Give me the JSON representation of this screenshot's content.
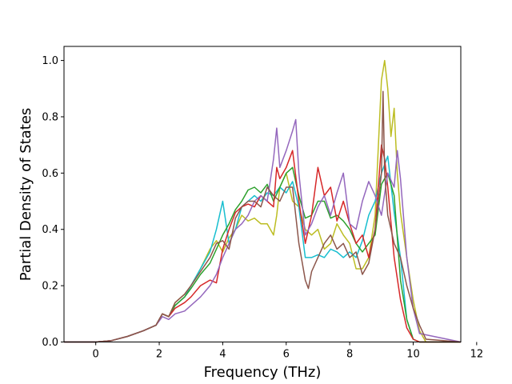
{
  "chart_data": {
    "type": "line",
    "title": "",
    "xlabel": "Frequency (THz)",
    "ylabel": "Partial Density of States",
    "xlim": [
      -1.0,
      11.5
    ],
    "ylim": [
      0.0,
      1.05
    ],
    "xticks": [
      0,
      2,
      4,
      6,
      8,
      10,
      12
    ],
    "yticks": [
      0.0,
      0.2,
      0.4,
      0.6,
      0.8,
      1.0
    ],
    "xtick_labels": [
      "0",
      "2",
      "4",
      "6",
      "8",
      "10",
      "12"
    ],
    "ytick_labels": [
      "0.0",
      "0.2",
      "0.4",
      "0.6",
      "0.8",
      "1.0"
    ],
    "grid": false,
    "legend": "none",
    "series": [
      {
        "color": "#bcbd22",
        "x": [
          -1.0,
          0.0,
          0.5,
          1.0,
          1.5,
          1.9,
          2.1,
          2.3,
          2.5,
          2.8,
          3.0,
          3.3,
          3.6,
          3.8,
          4.0,
          4.2,
          4.4,
          4.6,
          4.8,
          5.0,
          5.2,
          5.4,
          5.6,
          5.7,
          5.8,
          6.0,
          6.2,
          6.4,
          6.6,
          6.8,
          7.0,
          7.2,
          7.4,
          7.6,
          7.8,
          8.0,
          8.2,
          8.4,
          8.6,
          8.8,
          9.0,
          9.1,
          9.2,
          9.3,
          9.4,
          9.5,
          9.6,
          9.8,
          10.0,
          10.2,
          10.4,
          11.5
        ],
        "y": [
          0,
          0,
          0.005,
          0.02,
          0.04,
          0.06,
          0.1,
          0.09,
          0.14,
          0.17,
          0.2,
          0.26,
          0.33,
          0.36,
          0.32,
          0.37,
          0.4,
          0.45,
          0.43,
          0.44,
          0.42,
          0.42,
          0.38,
          0.45,
          0.55,
          0.6,
          0.5,
          0.48,
          0.4,
          0.38,
          0.4,
          0.33,
          0.35,
          0.42,
          0.38,
          0.35,
          0.26,
          0.26,
          0.3,
          0.45,
          0.93,
          1.0,
          0.9,
          0.73,
          0.83,
          0.6,
          0.46,
          0.3,
          0.15,
          0.04,
          0.0,
          0
        ]
      },
      {
        "color": "#17becf",
        "x": [
          -1.0,
          0.0,
          0.5,
          1.0,
          1.5,
          1.9,
          2.1,
          2.3,
          2.5,
          2.8,
          3.0,
          3.3,
          3.6,
          3.8,
          4.0,
          4.2,
          4.4,
          4.6,
          4.8,
          5.0,
          5.2,
          5.4,
          5.6,
          5.8,
          6.0,
          6.2,
          6.4,
          6.6,
          6.8,
          7.0,
          7.2,
          7.4,
          7.6,
          7.8,
          8.0,
          8.2,
          8.4,
          8.6,
          8.8,
          9.0,
          9.2,
          9.4,
          9.6,
          9.8,
          10.0,
          10.2,
          11.5
        ],
        "y": [
          0,
          0,
          0.005,
          0.02,
          0.04,
          0.06,
          0.1,
          0.09,
          0.13,
          0.16,
          0.2,
          0.26,
          0.32,
          0.4,
          0.5,
          0.35,
          0.4,
          0.48,
          0.5,
          0.52,
          0.5,
          0.53,
          0.52,
          0.55,
          0.53,
          0.57,
          0.48,
          0.3,
          0.3,
          0.31,
          0.3,
          0.33,
          0.32,
          0.3,
          0.32,
          0.3,
          0.36,
          0.45,
          0.5,
          0.6,
          0.66,
          0.46,
          0.3,
          0.08,
          0.01,
          0.0,
          0
        ]
      },
      {
        "color": "#2ca02c",
        "x": [
          -1.0,
          0.0,
          0.5,
          1.0,
          1.5,
          1.9,
          2.1,
          2.3,
          2.5,
          2.8,
          3.0,
          3.3,
          3.6,
          3.8,
          4.0,
          4.2,
          4.4,
          4.6,
          4.8,
          5.0,
          5.2,
          5.4,
          5.6,
          5.8,
          6.0,
          6.2,
          6.4,
          6.6,
          6.8,
          7.0,
          7.2,
          7.4,
          7.6,
          7.8,
          8.0,
          8.2,
          8.4,
          8.6,
          8.8,
          9.0,
          9.2,
          9.4,
          9.6,
          9.8,
          10.0,
          10.2,
          11.5
        ],
        "y": [
          0,
          0,
          0.005,
          0.02,
          0.04,
          0.06,
          0.1,
          0.09,
          0.13,
          0.16,
          0.19,
          0.24,
          0.28,
          0.33,
          0.38,
          0.42,
          0.47,
          0.5,
          0.54,
          0.55,
          0.53,
          0.56,
          0.5,
          0.55,
          0.6,
          0.62,
          0.52,
          0.44,
          0.45,
          0.5,
          0.5,
          0.44,
          0.45,
          0.43,
          0.4,
          0.35,
          0.32,
          0.35,
          0.38,
          0.56,
          0.6,
          0.52,
          0.22,
          0.08,
          0.01,
          0.0,
          0
        ]
      },
      {
        "color": "#d62728",
        "x": [
          -1.0,
          0.0,
          0.5,
          1.0,
          1.5,
          1.9,
          2.1,
          2.3,
          2.5,
          2.8,
          3.0,
          3.3,
          3.6,
          3.8,
          4.0,
          4.2,
          4.4,
          4.6,
          4.8,
          5.0,
          5.2,
          5.4,
          5.6,
          5.7,
          5.8,
          6.0,
          6.2,
          6.4,
          6.6,
          6.8,
          7.0,
          7.2,
          7.4,
          7.6,
          7.8,
          8.0,
          8.2,
          8.4,
          8.6,
          8.8,
          9.0,
          9.1,
          9.2,
          9.4,
          9.6,
          9.8,
          10.0,
          10.2,
          11.5
        ],
        "y": [
          0,
          0,
          0.005,
          0.02,
          0.04,
          0.06,
          0.1,
          0.09,
          0.12,
          0.14,
          0.16,
          0.2,
          0.22,
          0.21,
          0.33,
          0.4,
          0.46,
          0.48,
          0.49,
          0.48,
          0.52,
          0.5,
          0.48,
          0.62,
          0.58,
          0.62,
          0.68,
          0.5,
          0.35,
          0.45,
          0.62,
          0.52,
          0.55,
          0.43,
          0.5,
          0.42,
          0.35,
          0.38,
          0.3,
          0.4,
          0.7,
          0.65,
          0.55,
          0.3,
          0.15,
          0.05,
          0.01,
          0.0,
          0
        ]
      },
      {
        "color": "#9467bd",
        "x": [
          -1.0,
          0.0,
          0.5,
          1.0,
          1.5,
          1.9,
          2.1,
          2.3,
          2.5,
          2.8,
          3.0,
          3.3,
          3.6,
          3.8,
          4.0,
          4.2,
          4.4,
          4.6,
          4.8,
          5.0,
          5.2,
          5.4,
          5.6,
          5.7,
          5.8,
          6.0,
          6.2,
          6.3,
          6.4,
          6.6,
          6.8,
          7.0,
          7.2,
          7.4,
          7.6,
          7.8,
          8.0,
          8.2,
          8.4,
          8.6,
          8.8,
          9.0,
          9.2,
          9.4,
          9.5,
          9.6,
          9.8,
          10.0,
          10.2,
          11.5
        ],
        "y": [
          0,
          0,
          0.005,
          0.02,
          0.04,
          0.06,
          0.09,
          0.08,
          0.1,
          0.11,
          0.13,
          0.16,
          0.2,
          0.24,
          0.3,
          0.35,
          0.4,
          0.42,
          0.45,
          0.5,
          0.52,
          0.5,
          0.65,
          0.76,
          0.62,
          0.68,
          0.75,
          0.79,
          0.6,
          0.38,
          0.42,
          0.48,
          0.52,
          0.45,
          0.53,
          0.6,
          0.42,
          0.4,
          0.5,
          0.57,
          0.52,
          0.45,
          0.6,
          0.55,
          0.68,
          0.58,
          0.3,
          0.12,
          0.03,
          0
        ]
      },
      {
        "color": "#8c564b",
        "x": [
          -1.0,
          0.0,
          0.5,
          1.0,
          1.5,
          1.9,
          2.1,
          2.3,
          2.5,
          2.8,
          3.0,
          3.3,
          3.6,
          3.8,
          4.0,
          4.2,
          4.4,
          4.6,
          4.8,
          5.0,
          5.2,
          5.4,
          5.6,
          5.8,
          6.0,
          6.2,
          6.4,
          6.6,
          6.7,
          6.8,
          7.0,
          7.2,
          7.4,
          7.6,
          7.8,
          8.0,
          8.2,
          8.4,
          8.6,
          8.8,
          9.0,
          9.05,
          9.1,
          9.2,
          9.4,
          9.6,
          9.8,
          10.0,
          10.2,
          10.4,
          11.5
        ],
        "y": [
          0,
          0,
          0.005,
          0.02,
          0.04,
          0.06,
          0.1,
          0.09,
          0.14,
          0.17,
          0.2,
          0.25,
          0.3,
          0.35,
          0.36,
          0.33,
          0.44,
          0.48,
          0.5,
          0.5,
          0.48,
          0.55,
          0.52,
          0.5,
          0.55,
          0.55,
          0.35,
          0.22,
          0.19,
          0.25,
          0.3,
          0.35,
          0.38,
          0.33,
          0.35,
          0.3,
          0.32,
          0.24,
          0.28,
          0.4,
          0.6,
          0.89,
          0.6,
          0.45,
          0.35,
          0.3,
          0.2,
          0.12,
          0.06,
          0.01,
          0
        ]
      }
    ]
  }
}
